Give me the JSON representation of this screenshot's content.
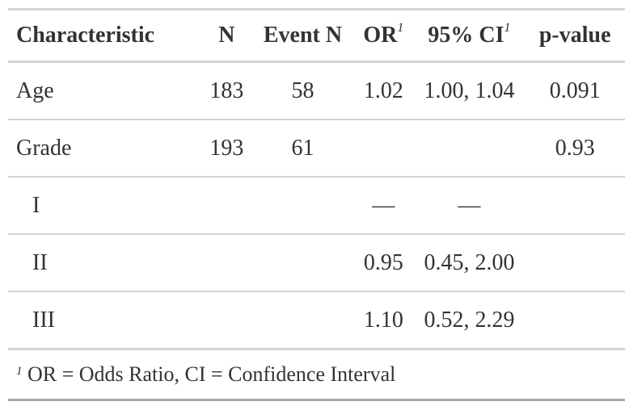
{
  "table": {
    "headers": {
      "characteristic": "Characteristic",
      "n": "N",
      "event_n": "Event N",
      "or": "OR",
      "or_mark": "1",
      "ci": "95% CI",
      "ci_mark": "1",
      "p_value": "p-value"
    },
    "rows": [
      {
        "characteristic": "Age",
        "n": "183",
        "event_n": "58",
        "or": "1.02",
        "ci": "1.00, 1.04",
        "p_value": "0.091"
      },
      {
        "characteristic": "Grade",
        "n": "193",
        "event_n": "61",
        "or": "",
        "ci": "",
        "p_value": "0.93"
      },
      {
        "characteristic": "I",
        "n": "",
        "event_n": "",
        "or": "—",
        "ci": "—",
        "p_value": ""
      },
      {
        "characteristic": "II",
        "n": "",
        "event_n": "",
        "or": "0.95",
        "ci": "0.45, 2.00",
        "p_value": ""
      },
      {
        "characteristic": "III",
        "n": "",
        "event_n": "",
        "or": "1.10",
        "ci": "0.52, 2.29",
        "p_value": ""
      }
    ]
  },
  "footnote": {
    "mark": "1",
    "text": "OR = Odds Ratio, CI = Confidence Interval"
  }
}
